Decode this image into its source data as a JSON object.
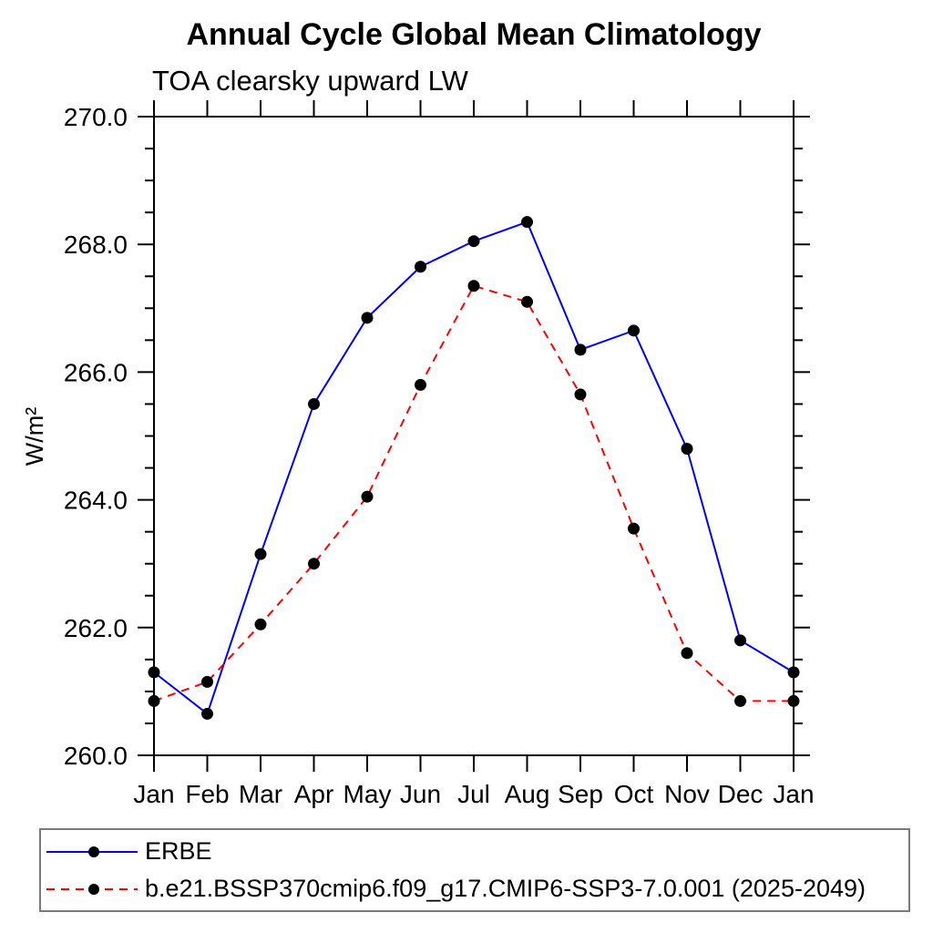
{
  "chart_data": {
    "type": "line",
    "title": "Annual Cycle Global Mean Climatology",
    "subtitle": "TOA clearsky upward LW",
    "ylabel": "W/m²",
    "xlabel": "",
    "categories": [
      "Jan",
      "Feb",
      "Mar",
      "Apr",
      "May",
      "Jun",
      "Jul",
      "Aug",
      "Sep",
      "Oct",
      "Nov",
      "Dec",
      "Jan"
    ],
    "ylim": [
      260.0,
      270.0
    ],
    "y_major_tick_labels": [
      "270.0",
      "268.0",
      "266.0",
      "264.0",
      "262.0",
      "260.0"
    ],
    "y_major_step": 2.0,
    "y_minor_step": 0.5,
    "grid": false,
    "legend_position": "bottom-left-box",
    "marker": "filled-circle",
    "marker_color": "#000000",
    "series": [
      {
        "name": "ERBE",
        "color": "#0000ff",
        "style": "solid",
        "values": [
          261.3,
          260.65,
          263.15,
          265.5,
          266.85,
          267.65,
          268.05,
          268.35,
          266.35,
          266.65,
          264.8,
          261.8,
          261.3
        ]
      },
      {
        "name": "b.e21.BSSP370cmip6.f09_g17.CMIP6-SSP3-7.0.001 (2025-2049)",
        "color": "#ff0000",
        "style": "dashed",
        "values": [
          260.85,
          261.15,
          262.05,
          263.0,
          264.05,
          265.8,
          267.35,
          267.1,
          265.65,
          263.55,
          261.6,
          260.85,
          260.85
        ]
      }
    ]
  }
}
